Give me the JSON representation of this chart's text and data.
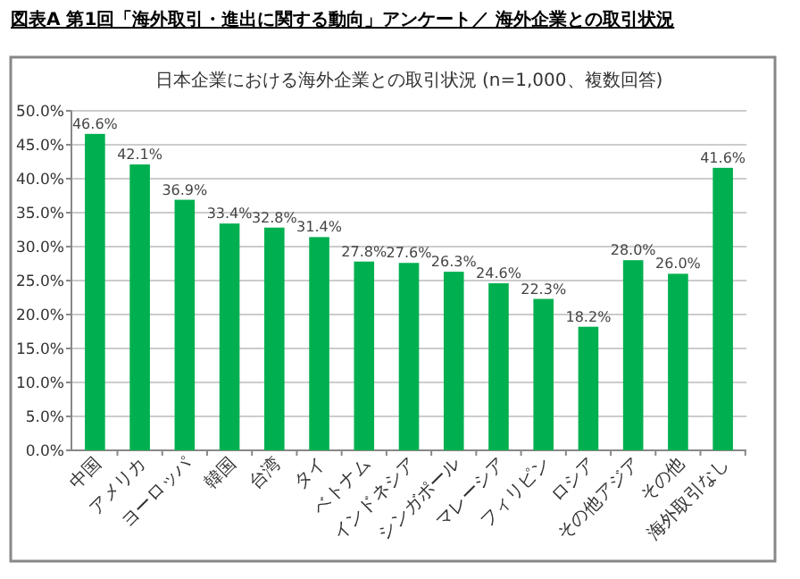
{
  "chart_data": {
    "type": "bar",
    "title": "図表A 第1回「海外取引・進出に関する動向」アンケート／ 海外企業との取引状況",
    "subtitle": "日本企業における海外企業との取引状況 (n=1,000、複数回答)",
    "categories": [
      "中国",
      "アメリカ",
      "ヨーロッパ",
      "韓国",
      "台湾",
      "タイ",
      "ベトナム",
      "インドネシア",
      "シンガポール",
      "マレーシア",
      "フィリピン",
      "ロシア",
      "その他アジア",
      "その他",
      "海外取引なし"
    ],
    "values": [
      46.6,
      42.1,
      36.9,
      33.4,
      32.8,
      31.4,
      27.8,
      27.6,
      26.3,
      24.6,
      22.3,
      18.2,
      28.0,
      26.0,
      41.6
    ],
    "value_labels": [
      "46.6%",
      "42.1%",
      "36.9%",
      "33.4%",
      "32.8%",
      "31.4%",
      "27.8%",
      "27.6%",
      "26.3%",
      "24.6%",
      "22.3%",
      "18.2%",
      "28.0%",
      "26.0%",
      "41.6%"
    ],
    "color": "#00b050",
    "ylim": [
      0,
      50
    ],
    "yticks": [
      {
        "value": 0,
        "label": "0.0%"
      },
      {
        "value": 5,
        "label": "5.0%"
      },
      {
        "value": 10,
        "label": "10.0%"
      },
      {
        "value": 15,
        "label": "15.0%"
      },
      {
        "value": 20,
        "label": "20.0%"
      },
      {
        "value": 25,
        "label": "25.0%"
      },
      {
        "value": 30,
        "label": "30.0%"
      },
      {
        "value": 35,
        "label": "35.0%"
      },
      {
        "value": 40,
        "label": "40.0%"
      },
      {
        "value": 45,
        "label": "45.0%"
      },
      {
        "value": 50,
        "label": "50.0%"
      }
    ],
    "grid": "y"
  }
}
